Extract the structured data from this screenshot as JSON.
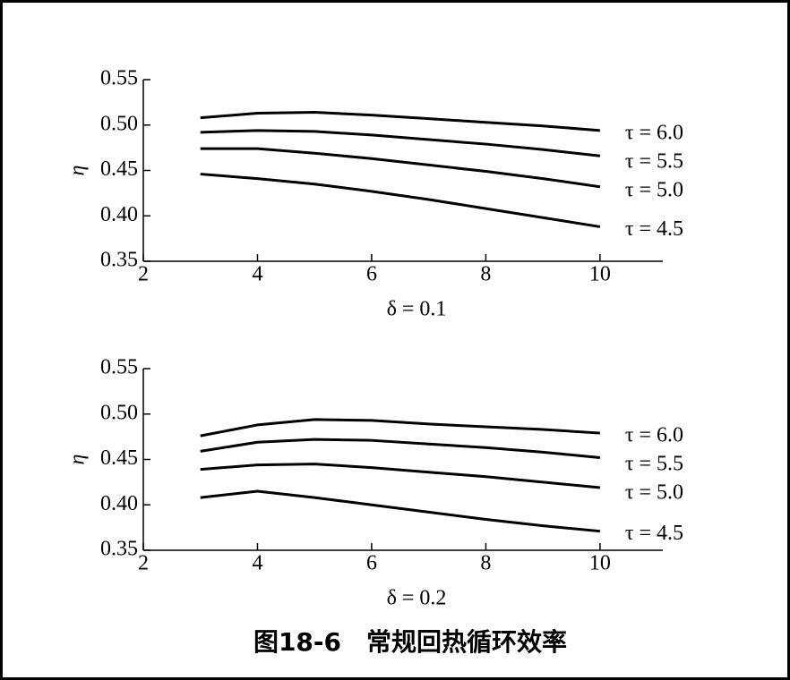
{
  "chart_data": [
    {
      "type": "line",
      "xlabel": "δ = 0.1",
      "ylabel": "η",
      "xlim": [
        2,
        11.1
      ],
      "ylim": [
        0.35,
        0.55
      ],
      "xticks": [
        2,
        4,
        6,
        8,
        10
      ],
      "yticks": [
        0.35,
        {
          "value": 0.4,
          "label": "0.40"
        },
        0.45,
        {
          "value": 0.5,
          "label": "0.50"
        },
        0.55
      ],
      "x": [
        3,
        4,
        5,
        6,
        7,
        8,
        9,
        10
      ],
      "series": [
        {
          "name": "τ = 6.0",
          "color": "#000000",
          "values": [
            0.508,
            0.513,
            0.514,
            0.511,
            0.507,
            0.503,
            0.499,
            0.494
          ]
        },
        {
          "name": "τ = 5.5",
          "color": "#000000",
          "values": [
            0.492,
            0.494,
            0.493,
            0.489,
            0.484,
            0.479,
            0.473,
            0.466
          ]
        },
        {
          "name": "τ = 5.0",
          "color": "#000000",
          "values": [
            0.474,
            0.474,
            0.469,
            0.463,
            0.456,
            0.449,
            0.441,
            0.432
          ]
        },
        {
          "name": "τ = 4.5",
          "color": "#000000",
          "values": [
            0.446,
            0.441,
            0.435,
            0.427,
            0.418,
            0.408,
            0.398,
            0.388
          ]
        }
      ]
    },
    {
      "type": "line",
      "xlabel": "δ = 0.2",
      "ylabel": "η",
      "xlim": [
        2,
        11.1
      ],
      "ylim": [
        0.35,
        0.55
      ],
      "xticks": [
        2,
        4,
        6,
        8,
        10
      ],
      "yticks": [
        0.35,
        {
          "value": 0.4,
          "label": "0.40"
        },
        0.45,
        {
          "value": 0.5,
          "label": "0.50"
        },
        0.55
      ],
      "x": [
        3,
        4,
        5,
        6,
        7,
        8,
        9,
        10
      ],
      "series": [
        {
          "name": "τ = 6.0",
          "color": "#000000",
          "values": [
            0.476,
            0.488,
            0.494,
            0.493,
            0.489,
            0.486,
            0.483,
            0.479
          ]
        },
        {
          "name": "τ = 5.5",
          "color": "#000000",
          "values": [
            0.459,
            0.469,
            0.472,
            0.471,
            0.467,
            0.463,
            0.458,
            0.452
          ]
        },
        {
          "name": "τ = 5.0",
          "color": "#000000",
          "values": [
            0.439,
            0.444,
            0.445,
            0.441,
            0.436,
            0.431,
            0.425,
            0.419
          ]
        },
        {
          "name": "τ = 4.5",
          "color": "#000000",
          "values": [
            0.408,
            0.415,
            0.408,
            0.4,
            0.392,
            0.384,
            0.377,
            0.371
          ]
        }
      ]
    }
  ],
  "figure_caption": "图18-6　常规回热循环效率"
}
